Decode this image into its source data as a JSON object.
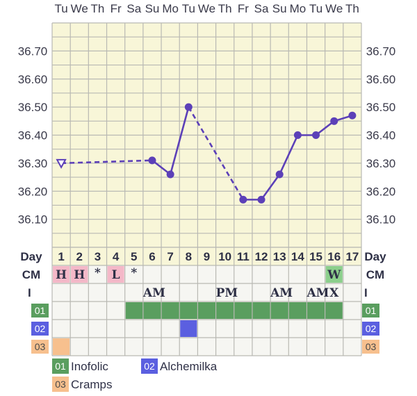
{
  "chart_data": {
    "type": "line",
    "weekdays": [
      "Tu",
      "We",
      "Th",
      "Fr",
      "Sa",
      "Su",
      "Mo",
      "Tu",
      "We",
      "Th",
      "Fr",
      "Sa",
      "Su",
      "Mo",
      "Tu",
      "We",
      "Th"
    ],
    "days": [
      1,
      2,
      3,
      4,
      5,
      6,
      7,
      8,
      9,
      10,
      11,
      12,
      13,
      14,
      15,
      16,
      17
    ],
    "y_ticks": [
      "36.10",
      "36.20",
      "36.30",
      "36.40",
      "36.50",
      "36.60",
      "36.70"
    ],
    "ylim": [
      36.0,
      36.8
    ],
    "grid": true,
    "series": [
      {
        "points": [
          {
            "day": 1,
            "temp": 36.3,
            "marker": "triangle"
          },
          {
            "day": 6,
            "temp": 36.31
          },
          {
            "day": 7,
            "temp": 36.26
          },
          {
            "day": 8,
            "temp": 36.5
          },
          {
            "day": 11,
            "temp": 36.17
          },
          {
            "day": 12,
            "temp": 36.17
          },
          {
            "day": 13,
            "temp": 36.26
          },
          {
            "day": 14,
            "temp": 36.4
          },
          {
            "day": 15,
            "temp": 36.4
          },
          {
            "day": 16,
            "temp": 36.45
          },
          {
            "day": 17,
            "temp": 36.47
          }
        ]
      }
    ],
    "line_style_by_segment": [
      "dashed",
      "solid",
      "solid",
      "dashed",
      "solid",
      "solid",
      "solid",
      "solid",
      "solid",
      "solid"
    ],
    "day_label": "Day",
    "cm_label": "CM",
    "i_label": "I",
    "cm_row": [
      {
        "day": 1,
        "text": "H",
        "fill": "#f4b8c8"
      },
      {
        "day": 2,
        "text": "H",
        "fill": "#f4b8c8"
      },
      {
        "day": 3,
        "text": "*",
        "fill": ""
      },
      {
        "day": 4,
        "text": "L",
        "fill": "#f4b8c8"
      },
      {
        "day": 5,
        "text": "*",
        "fill": ""
      },
      {
        "day": 16,
        "text": "W",
        "fill": "#8ccf8c"
      }
    ],
    "i_row": [
      {
        "day": 6,
        "text": "AM"
      },
      {
        "day": 10,
        "text": "PM"
      },
      {
        "day": 13,
        "text": "AM"
      },
      {
        "day": 15,
        "text": "AM"
      },
      {
        "day": 16,
        "text": "X"
      }
    ],
    "med_rows": [
      {
        "code": "01",
        "name": "Inofolic",
        "color": "#5a9e5f",
        "days": [
          5,
          6,
          7,
          8,
          9,
          10,
          11,
          12,
          13,
          14,
          15,
          16
        ]
      },
      {
        "code": "02",
        "name": "Alchemilka",
        "color": "#5b5fe0",
        "days": [
          8
        ]
      },
      {
        "code": "03",
        "name": "Cramps",
        "color": "#f7c08e",
        "days": [
          1
        ]
      }
    ],
    "colors": {
      "plot_bg": "#f8f6d8",
      "grid": "#b9b9b3",
      "line": "#5c40b8",
      "table_bg": "#f6f6f2"
    }
  }
}
